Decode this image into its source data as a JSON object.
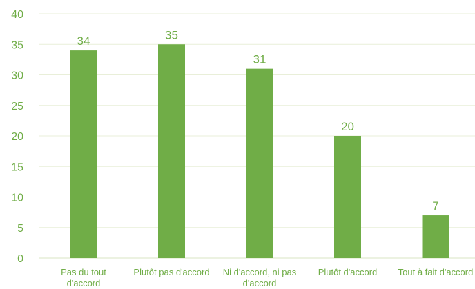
{
  "chart_data": {
    "type": "bar",
    "categories": [
      [
        "Pas du tout",
        "d'accord"
      ],
      [
        "Plutôt pas d'accord"
      ],
      [
        "Ni d'accord, ni pas",
        "d'accord"
      ],
      [
        "Plutôt d'accord"
      ],
      [
        "Tout à fait d'accord"
      ]
    ],
    "values": [
      34,
      35,
      31,
      20,
      7
    ],
    "data_labels": [
      "34",
      "35",
      "31",
      "20",
      "7"
    ],
    "y_ticks": [
      "0",
      "5",
      "10",
      "15",
      "20",
      "25",
      "30",
      "35",
      "40"
    ],
    "ylim": [
      0,
      40
    ],
    "grid": true,
    "bar_color": "#70ad47",
    "text_color": "#70ad47",
    "grid_color": "#e9efd9"
  }
}
